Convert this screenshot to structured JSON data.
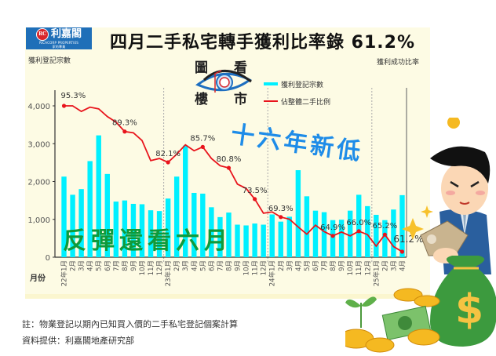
{
  "logo": {
    "name": "利嘉閣",
    "english": "RICACORP PROPERTIES",
    "tagline": "家的專業",
    "mark": "RC"
  },
  "title": "四月二手私宅轉手獲利比率錄 61.2%",
  "left_axis_label": "獲利登記宗數",
  "right_axis_label": "獲利成功比率",
  "x_axis_label": "月份",
  "watermark": {
    "top_left": "圖",
    "top_right": "看",
    "bottom_left": "樓",
    "bottom_right": "市"
  },
  "legend": {
    "bars": "獲利登記宗數",
    "line": "佔整體二手比例"
  },
  "annotations": {
    "headline_blue": "十六年新低",
    "headline_green": "反彈還看六月"
  },
  "footer": {
    "note": "註：物業登記以期內已知買入價的二手私宅登記個案計算",
    "source": "資料提供：利嘉閣地產研究部"
  },
  "colors": {
    "bars": "#00f0ff",
    "line": "#e8141c",
    "headline_blue": "#1e8ce8",
    "headline_green": "#0f9a3a",
    "panel": "#fdfbe4",
    "logo_bg": "#1f6fb8"
  },
  "chart_data": {
    "type": "bar+line",
    "title": "四月二手私宅轉手獲利比率錄 61.2%",
    "xlabel": "月份",
    "ylabel": "獲利登記宗數",
    "y2label": "獲利成功比率",
    "ylim": [
      0,
      4500
    ],
    "yticks": [
      "0",
      "1,000",
      "2,000",
      "3,000",
      "4,000"
    ],
    "categories": [
      "22年1月",
      "2月",
      "3月",
      "4月",
      "5月",
      "6月",
      "7月",
      "8月",
      "9月",
      "10月",
      "11月",
      "12月",
      "23年1月",
      "2月",
      "3月",
      "4月",
      "5月",
      "6月",
      "7月",
      "8月",
      "9月",
      "10月",
      "11月",
      "12月",
      "24年1月",
      "2月",
      "3月",
      "4月",
      "5月",
      "6月",
      "7月",
      "8月",
      "9月",
      "10月",
      "11月",
      "12月",
      "25年1月",
      "2月",
      "3月",
      "4月"
    ],
    "series": [
      {
        "name": "獲利登記宗數",
        "type": "bar",
        "values": [
          2130,
          1650,
          1800,
          2540,
          3220,
          2200,
          1470,
          1500,
          1410,
          1400,
          1240,
          1220,
          1550,
          2130,
          2950,
          1700,
          1680,
          1320,
          1060,
          1180,
          860,
          840,
          890,
          860,
          1130,
          940,
          1070,
          2300,
          1610,
          1230,
          1190,
          980,
          990,
          1230,
          1650,
          1350,
          1120,
          980,
          1260,
          1640
        ]
      },
      {
        "name": "佔整體二手比例",
        "type": "line",
        "unit": "%",
        "values": [
          95.3,
          95.3,
          94.0,
          95.0,
          94.6,
          92.8,
          91.5,
          89.3,
          89.0,
          87.2,
          82.5,
          83.0,
          82.1,
          84.0,
          86.2,
          84.8,
          85.7,
          83.0,
          81.3,
          80.8,
          77.0,
          76.0,
          73.5,
          70.2,
          70.5,
          69.3,
          68.8,
          67.0,
          65.3,
          67.4,
          65.9,
          64.9,
          65.8,
          64.9,
          66.0,
          65.2,
          62.5,
          65.2,
          62.4,
          61.2
        ]
      }
    ],
    "data_labels": [
      {
        "index": 0,
        "text": "95.3%"
      },
      {
        "index": 7,
        "text": "89.3%"
      },
      {
        "index": 12,
        "text": "82.1%"
      },
      {
        "index": 16,
        "text": "85.7%"
      },
      {
        "index": 19,
        "text": "80.8%"
      },
      {
        "index": 22,
        "text": "73.5%"
      },
      {
        "index": 25,
        "text": "69.3%"
      },
      {
        "index": 31,
        "text": "64.9%"
      },
      {
        "index": 34,
        "text": "66.0%"
      },
      {
        "index": 37,
        "text": "65.2%"
      },
      {
        "index": 39,
        "text": "61.2%"
      }
    ],
    "year_dividers_after_index": [
      11,
      23,
      35
    ],
    "legend_position": "top-center"
  }
}
